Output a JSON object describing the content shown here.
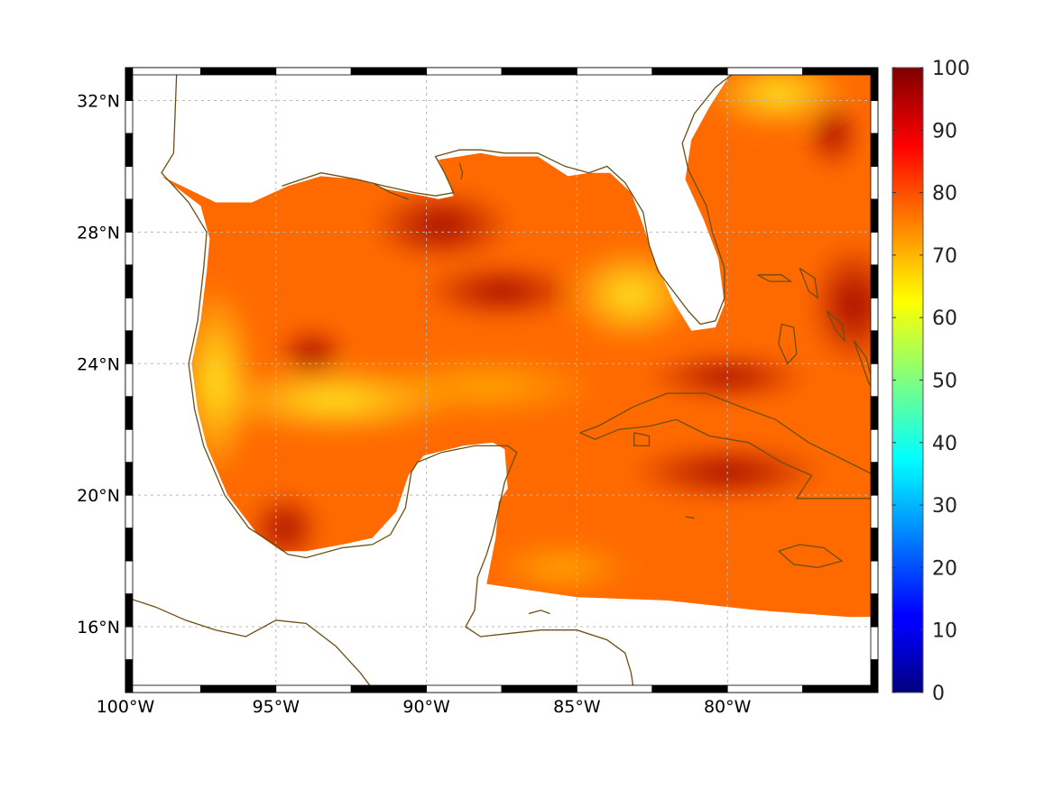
{
  "map": {
    "extent": {
      "lon_min": -100,
      "lon_max": -75,
      "lat_min": 14,
      "lat_max": 33
    },
    "lat_ticks": [
      {
        "value": 32,
        "label": "32°N"
      },
      {
        "value": 28,
        "label": "28°N"
      },
      {
        "value": 24,
        "label": "24°N"
      },
      {
        "value": 20,
        "label": "20°N"
      },
      {
        "value": 16,
        "label": "16°N"
      }
    ],
    "lon_ticks": [
      {
        "value": -100,
        "label": "100°W"
      },
      {
        "value": -95,
        "label": "95°W"
      },
      {
        "value": -90,
        "label": "90°W"
      },
      {
        "value": -85,
        "label": "85°W"
      },
      {
        "value": -80,
        "label": "80°W"
      }
    ],
    "grid": true,
    "coastline_color": "#6b4e16",
    "field_typical_range": [
      65,
      98
    ]
  },
  "colorbar": {
    "min": 0,
    "max": 100,
    "colormap": "jet",
    "ticks": [
      {
        "value": 100,
        "label": "100"
      },
      {
        "value": 90,
        "label": "90"
      },
      {
        "value": 80,
        "label": "80"
      },
      {
        "value": 70,
        "label": "70"
      },
      {
        "value": 60,
        "label": "60"
      },
      {
        "value": 50,
        "label": "50"
      },
      {
        "value": 40,
        "label": "40"
      },
      {
        "value": 30,
        "label": "30"
      },
      {
        "value": 20,
        "label": "20"
      },
      {
        "value": 10,
        "label": "10"
      },
      {
        "value": 0,
        "label": "0"
      }
    ]
  }
}
